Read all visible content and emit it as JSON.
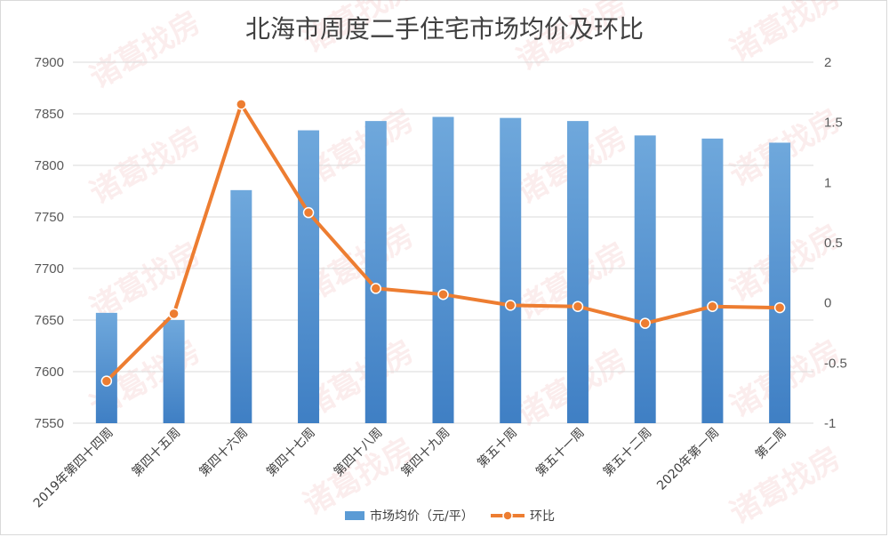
{
  "chart_data": {
    "type": "bar+line",
    "title": "北海市周度二手住宅市场均价及环比",
    "categories": [
      "2019年第四十四周",
      "第四十五周",
      "第四十六周",
      "第四十七周",
      "第四十八周",
      "第四十九周",
      "第五十周",
      "第五十一周",
      "第五十二周",
      "2020年第一周",
      "第二周"
    ],
    "series": [
      {
        "name": "市场均价（元/平）",
        "type": "bar",
        "axis": "left",
        "color": "#5b9bd5",
        "values": [
          7657,
          7650,
          7776,
          7834,
          7843,
          7847,
          7846,
          7843,
          7829,
          7826,
          7822
        ]
      },
      {
        "name": "环比",
        "type": "line",
        "axis": "right",
        "color": "#ed7d31",
        "values": [
          -0.65,
          -0.09,
          1.65,
          0.75,
          0.12,
          0.07,
          -0.02,
          -0.03,
          -0.17,
          -0.03,
          -0.04
        ]
      }
    ],
    "y_left": {
      "min": 7550,
      "max": 7900,
      "step": 50,
      "ticks": [
        "7550",
        "7600",
        "7650",
        "7700",
        "7750",
        "7800",
        "7850",
        "7900"
      ]
    },
    "y_right": {
      "min": -1,
      "max": 2,
      "step": 0.5,
      "ticks": [
        "-1",
        "-0.5",
        "0",
        "0.5",
        "1",
        "1.5",
        "2"
      ]
    },
    "grid": true,
    "legend_position": "bottom"
  },
  "watermark": "诸葛找房"
}
